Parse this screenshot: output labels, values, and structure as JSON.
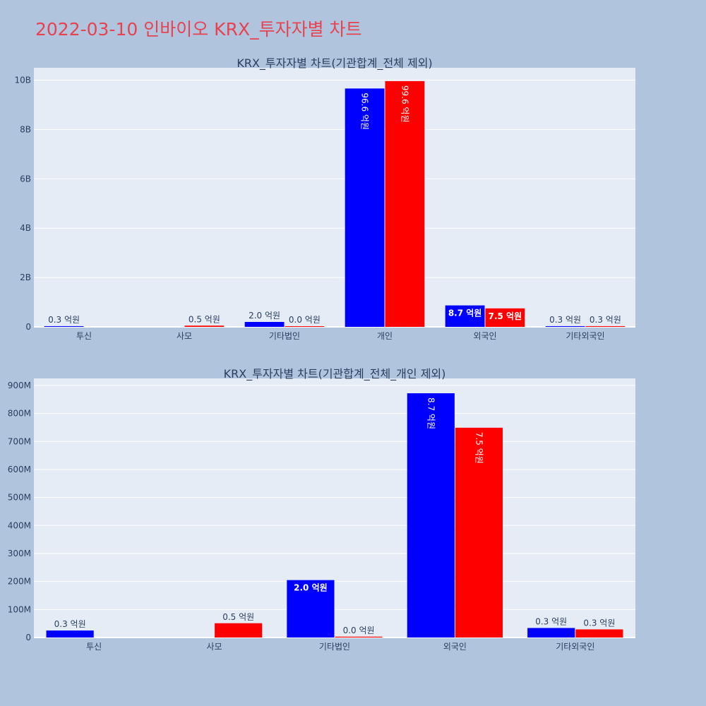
{
  "page": {
    "title": "2022-03-10 인바이오 KRX_투자자별 차트",
    "background": "#b0c4de",
    "title_color": "#e8424f"
  },
  "colors": {
    "buy": "#0000ff",
    "sell": "#ff0000",
    "plot_bg": "#e5ecf6",
    "grid": "#ffffff"
  },
  "chart_data": [
    {
      "type": "bar",
      "title": "KRX_투자자별 차트(기관합계_전체 제외)",
      "categories": [
        "투신",
        "사모",
        "기타법인",
        "개인",
        "외국인",
        "기타외국인"
      ],
      "ylim": [
        0,
        10500000000
      ],
      "yticks": [
        0,
        2000000000,
        4000000000,
        6000000000,
        8000000000,
        10000000000
      ],
      "ytick_labels": [
        "0",
        "2B",
        "4B",
        "6B",
        "8B",
        "10B"
      ],
      "grid": true,
      "series": [
        {
          "color": "#0000ff",
          "values": [
            30000000,
            null,
            200000000,
            9660000000,
            870000000,
            30000000
          ],
          "labels": [
            "0.3 억원",
            "",
            "2.0 억원",
            "96.6 억원",
            "8.7 억원",
            "0.3 억원"
          ]
        },
        {
          "color": "#ff0000",
          "values": [
            null,
            50000000,
            3000000,
            9960000000,
            750000000,
            30000000
          ],
          "labels": [
            "",
            "0.5 억원",
            "0.0 억원",
            "99.6 억원",
            "7.5 억원",
            "0.3 억원"
          ]
        }
      ]
    },
    {
      "type": "bar",
      "title": "KRX_투자자별 차트(기관합계_전체_개인 제외)",
      "categories": [
        "투신",
        "사모",
        "기타법인",
        "외국인",
        "기타외국인"
      ],
      "ylim": [
        0,
        925000000
      ],
      "yticks": [
        0,
        100000000,
        200000000,
        300000000,
        400000000,
        500000000,
        600000000,
        700000000,
        800000000,
        900000000
      ],
      "ytick_labels": [
        "0",
        "100M",
        "200M",
        "300M",
        "400M",
        "500M",
        "600M",
        "700M",
        "800M",
        "900M"
      ],
      "grid": true,
      "series": [
        {
          "color": "#0000ff",
          "values": [
            25000000,
            null,
            205000000,
            872000000,
            34000000
          ],
          "labels": [
            "0.3 억원",
            "",
            "2.0 억원",
            "8.7 억원",
            "0.3 억원"
          ]
        },
        {
          "color": "#ff0000",
          "values": [
            null,
            51000000,
            3000000,
            749000000,
            29000000
          ],
          "labels": [
            "",
            "0.5 억원",
            "0.0 억원",
            "7.5 억원",
            "0.3 억원"
          ]
        }
      ]
    }
  ]
}
